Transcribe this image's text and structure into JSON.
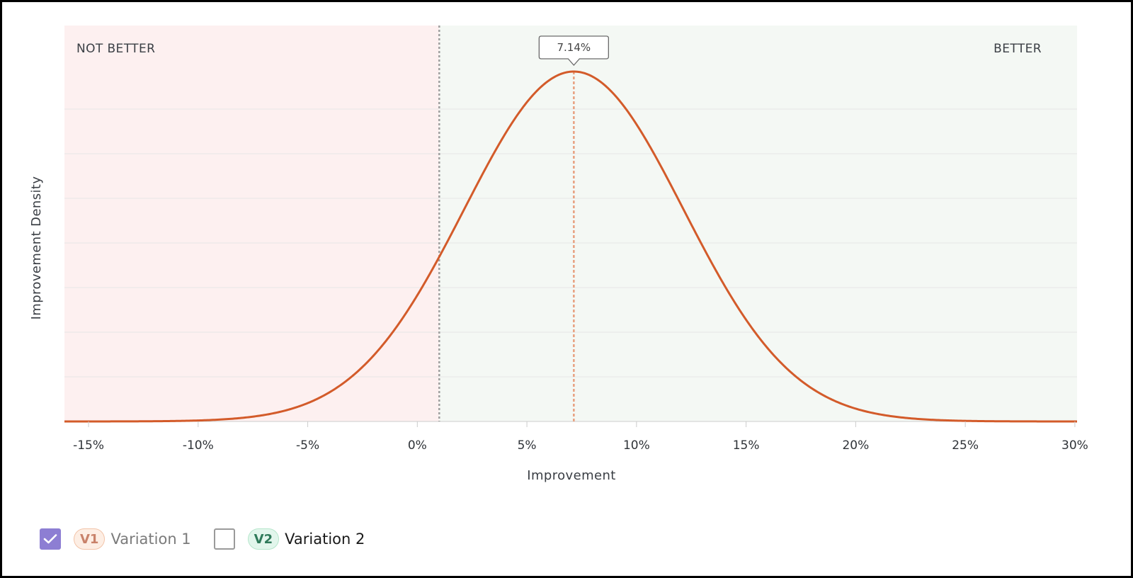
{
  "chart_data": {
    "type": "area",
    "xlabel": "Improvement",
    "ylabel": "Improvement Density",
    "xlim": [
      -16.1,
      30.1
    ],
    "xticks": [
      -15,
      -10,
      -5,
      0,
      5,
      10,
      15,
      20,
      25,
      30
    ],
    "xtick_labels": [
      "-15%",
      "-10%",
      "-5%",
      "0%",
      "5%",
      "10%",
      "15%",
      "20%",
      "25%",
      "30%"
    ],
    "y_ticks_labeled": false,
    "grid": "horizontal",
    "threshold_x": 1.0,
    "regions": {
      "left_label": "NOT BETTER",
      "right_label": "BETTER",
      "left_color": "#fdf0f0",
      "right_color": "#f4f8f4"
    },
    "series": [
      {
        "curve": "normal",
        "mean": 7.14,
        "std_dev": 5.0,
        "color": "#d35b2a"
      }
    ],
    "annotation": {
      "label": "7.14%",
      "x": 7.14
    }
  },
  "legend": {
    "items": [
      {
        "badge": "V1",
        "label": "Variation 1",
        "checked": true
      },
      {
        "badge": "V2",
        "label": "Variation 2",
        "checked": false
      }
    ],
    "check_color": "#8d7ed3"
  }
}
